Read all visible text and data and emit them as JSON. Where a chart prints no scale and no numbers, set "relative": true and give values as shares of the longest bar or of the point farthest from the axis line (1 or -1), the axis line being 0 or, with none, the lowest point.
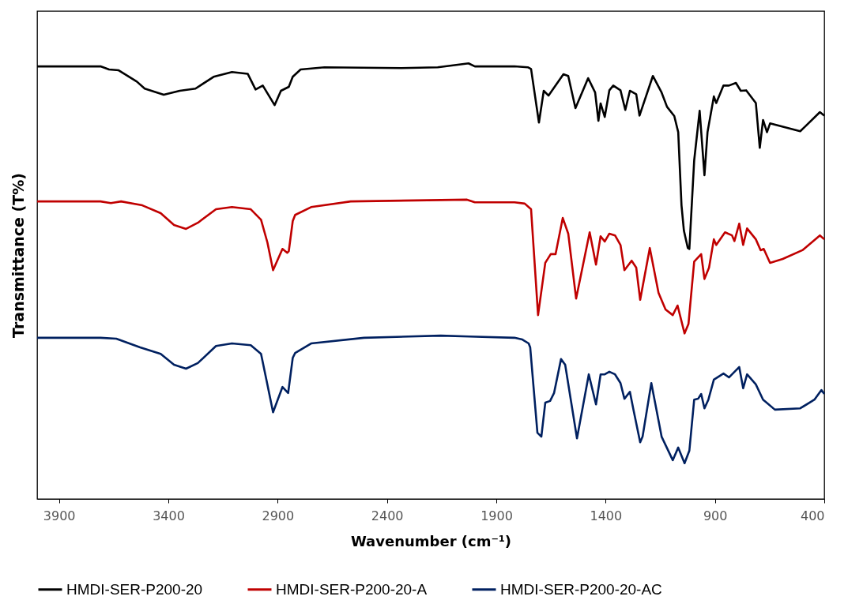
{
  "chart_data": {
    "type": "line",
    "relative": true,
    "xlabel": "Wavenumber (cm⁻¹)",
    "ylabel": "Transmittance (T%)",
    "xlim": [
      4000,
      400
    ],
    "xticks": [
      3900,
      3400,
      2900,
      2400,
      1900,
      1400,
      900,
      400
    ],
    "legend": "bottom",
    "series": [
      {
        "name": "HMDI-SER-P200-20",
        "color": "#000000",
        "x": [
          4000,
          3710,
          3671,
          3627,
          3544,
          3508,
          3421,
          3348,
          3276,
          3193,
          3109,
          3037,
          3001,
          2968,
          2914,
          2885,
          2849,
          2831,
          2795,
          2686,
          2335,
          2168,
          2027,
          1998,
          1817,
          1756,
          1741,
          1705,
          1683,
          1661,
          1593,
          1571,
          1538,
          1480,
          1448,
          1433,
          1423,
          1404,
          1383,
          1365,
          1332,
          1310,
          1289,
          1260,
          1245,
          1184,
          1144,
          1119,
          1086,
          1068,
          1053,
          1042,
          1024,
          1017,
          995,
          970,
          948,
          934,
          905,
          894,
          861,
          836,
          804,
          782,
          757,
          713,
          695,
          680,
          662,
          648,
          510,
          420,
          400
        ],
        "values": [
          0.993,
          0.993,
          0.986,
          0.984,
          0.958,
          0.942,
          0.928,
          0.937,
          0.942,
          0.969,
          0.98,
          0.976,
          0.94,
          0.949,
          0.904,
          0.937,
          0.946,
          0.969,
          0.986,
          0.991,
          0.989,
          0.991,
          1.0,
          0.993,
          0.993,
          0.991,
          0.987,
          0.864,
          0.937,
          0.926,
          0.975,
          0.971,
          0.897,
          0.966,
          0.933,
          0.868,
          0.908,
          0.877,
          0.938,
          0.949,
          0.938,
          0.893,
          0.937,
          0.929,
          0.88,
          0.971,
          0.933,
          0.9,
          0.879,
          0.842,
          0.674,
          0.616,
          0.576,
          0.574,
          0.777,
          0.891,
          0.743,
          0.842,
          0.924,
          0.909,
          0.949,
          0.949,
          0.955,
          0.937,
          0.938,
          0.909,
          0.806,
          0.87,
          0.842,
          0.862,
          0.844,
          0.888,
          0.88
        ]
      },
      {
        "name": "HMDI-SER-P200-20-A",
        "color": "#c00000",
        "x": [
          4000,
          3710,
          3663,
          3616,
          3519,
          3435,
          3374,
          3319,
          3265,
          3182,
          3109,
          3023,
          2976,
          2947,
          2921,
          2878,
          2856,
          2849,
          2831,
          2820,
          2747,
          2566,
          2034,
          1998,
          1817,
          1770,
          1741,
          1709,
          1676,
          1651,
          1629,
          1596,
          1571,
          1535,
          1473,
          1444,
          1423,
          1404,
          1383,
          1357,
          1332,
          1314,
          1281,
          1260,
          1242,
          1198,
          1158,
          1126,
          1093,
          1071,
          1039,
          1021,
          995,
          963,
          948,
          927,
          905,
          894,
          854,
          822,
          811,
          789,
          771,
          753,
          713,
          691,
          677,
          648,
          590,
          500,
          420,
          400
        ],
        "values": [
          0.683,
          0.683,
          0.679,
          0.683,
          0.674,
          0.656,
          0.629,
          0.62,
          0.634,
          0.665,
          0.67,
          0.665,
          0.641,
          0.589,
          0.525,
          0.574,
          0.565,
          0.569,
          0.638,
          0.652,
          0.67,
          0.683,
          0.687,
          0.681,
          0.681,
          0.678,
          0.665,
          0.422,
          0.542,
          0.562,
          0.562,
          0.645,
          0.609,
          0.46,
          0.612,
          0.538,
          0.603,
          0.591,
          0.609,
          0.605,
          0.583,
          0.525,
          0.547,
          0.531,
          0.457,
          0.576,
          0.473,
          0.435,
          0.422,
          0.444,
          0.38,
          0.402,
          0.545,
          0.562,
          0.505,
          0.531,
          0.596,
          0.583,
          0.612,
          0.605,
          0.592,
          0.632,
          0.583,
          0.621,
          0.596,
          0.571,
          0.574,
          0.542,
          0.551,
          0.571,
          0.605,
          0.596
        ]
      },
      {
        "name": "HMDI-SER-P200-20-AC",
        "color": "#002060",
        "x": [
          4000,
          3710,
          3638,
          3529,
          3435,
          3374,
          3319,
          3265,
          3182,
          3109,
          3023,
          2976,
          2950,
          2921,
          2878,
          2852,
          2831,
          2820,
          2747,
          2505,
          2154,
          2023,
          1817,
          1781,
          1752,
          1745,
          1712,
          1694,
          1676,
          1654,
          1636,
          1604,
          1585,
          1531,
          1477,
          1444,
          1423,
          1404,
          1383,
          1357,
          1332,
          1314,
          1289,
          1274,
          1242,
          1231,
          1191,
          1144,
          1093,
          1068,
          1039,
          1017,
          995,
          977,
          963,
          948,
          930,
          905,
          861,
          836,
          789,
          771,
          753,
          713,
          680,
          626,
          510,
          445,
          413,
          400
        ],
        "values": [
          0.37,
          0.37,
          0.368,
          0.348,
          0.333,
          0.308,
          0.299,
          0.312,
          0.351,
          0.357,
          0.353,
          0.333,
          0.27,
          0.199,
          0.257,
          0.243,
          0.324,
          0.335,
          0.357,
          0.37,
          0.375,
          0.373,
          0.37,
          0.366,
          0.357,
          0.348,
          0.152,
          0.143,
          0.221,
          0.225,
          0.243,
          0.321,
          0.308,
          0.139,
          0.286,
          0.217,
          0.286,
          0.286,
          0.292,
          0.286,
          0.266,
          0.23,
          0.246,
          0.208,
          0.13,
          0.143,
          0.266,
          0.143,
          0.089,
          0.118,
          0.082,
          0.111,
          0.228,
          0.23,
          0.241,
          0.208,
          0.228,
          0.274,
          0.288,
          0.279,
          0.303,
          0.254,
          0.286,
          0.263,
          0.228,
          0.205,
          0.208,
          0.228,
          0.25,
          0.241
        ]
      }
    ]
  }
}
